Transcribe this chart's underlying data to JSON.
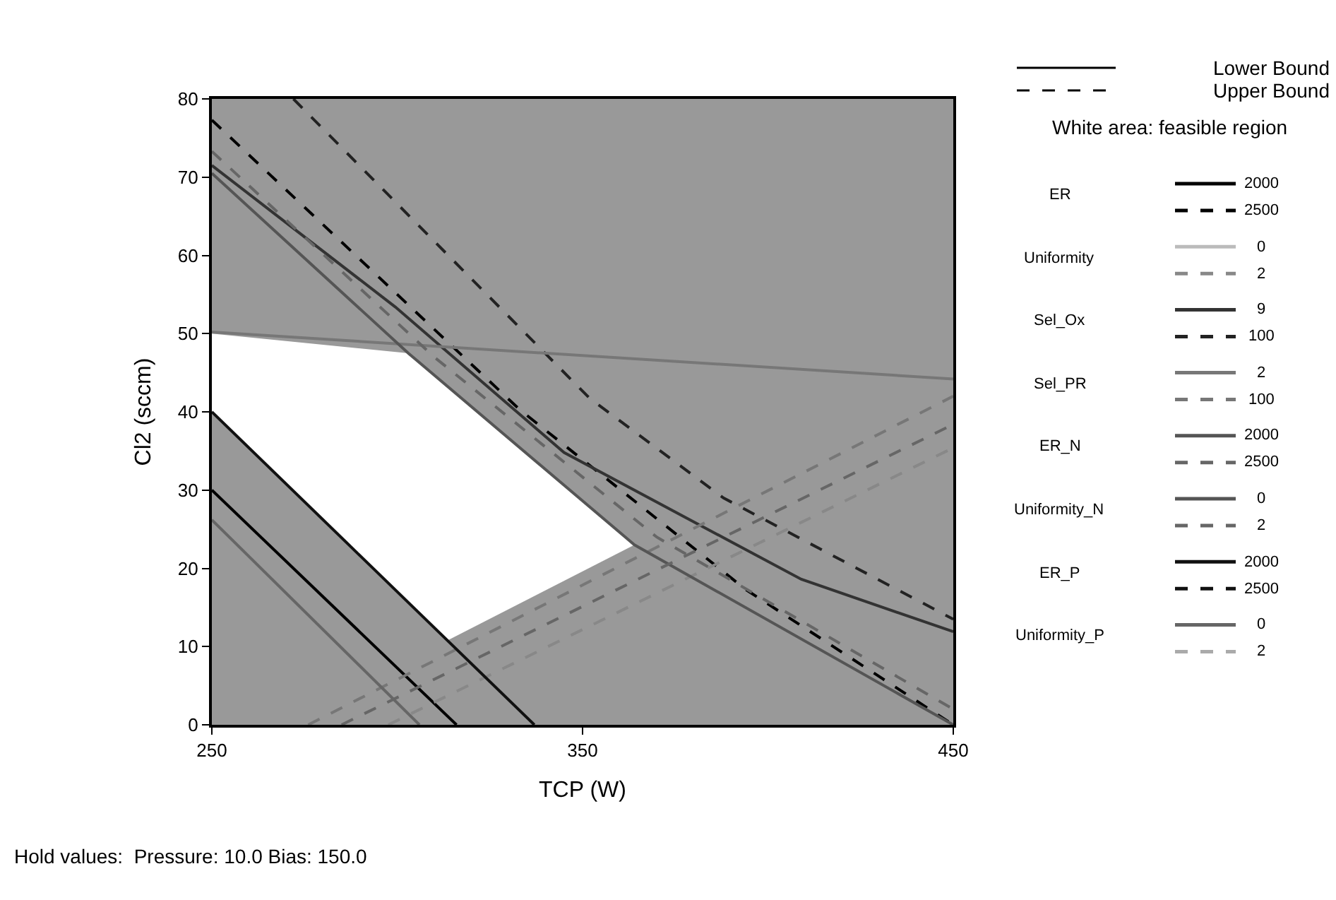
{
  "chart_data": {
    "type": "line",
    "xlabel": "TCP (W)",
    "ylabel": "Cl2 (sccm)",
    "xlim": [
      250,
      450
    ],
    "xticks": [
      250,
      350,
      450
    ],
    "ylim": [
      0,
      80
    ],
    "yticks": [
      0,
      10,
      20,
      30,
      40,
      50,
      60,
      70,
      80
    ],
    "grid": false,
    "legend": "right",
    "marker": "none",
    "annotations": [
      "Lower Bound",
      "Upper Bound",
      "White area: feasible region",
      "ER",
      "Uniformity",
      "Sel_Ox",
      "Sel_PR",
      "ER_N",
      "Uniformity_N",
      "ER_P",
      "Uniformity_P",
      "Hold values:  Pressure: 10.0 Bias: 150.0"
    ],
    "series": [
      {
        "type": "area",
        "color": "#ffffff",
        "x": [
          250,
          303,
          364,
          313.6,
          250
        ],
        "values": [
          50,
          47.5,
          23,
          10.8,
          40
        ]
      },
      {
        "name": "2000",
        "color": "#000000",
        "line_style": "solid",
        "x": [
          250,
          316
        ],
        "values": [
          30,
          0
        ]
      },
      {
        "name": "2500",
        "color": "#000000",
        "line_style": "dashed",
        "x": [
          250,
          333,
          394,
          450
        ],
        "values": [
          77.3,
          40.3,
          17.3,
          0
        ]
      },
      {
        "name": "0",
        "color": "#bbbbbb",
        "line_style": "solid"
      },
      {
        "name": "2",
        "color": "#888888",
        "line_style": "dashed",
        "x": [
          297.6,
          450
        ],
        "values": [
          0,
          35.4
        ]
      },
      {
        "name": "9",
        "color": "#333333",
        "line_style": "solid",
        "x": [
          250,
          299.5,
          345,
          409,
          450
        ],
        "values": [
          71.5,
          53.4,
          34.8,
          18.6,
          11.9
        ]
      },
      {
        "name": "100",
        "color": "#222222",
        "line_style": "dashed",
        "x": [
          272,
          343,
          352,
          388,
          450
        ],
        "values": [
          80,
          46,
          41.7,
          29,
          13.5
        ]
      },
      {
        "name": "2",
        "color": "#777777",
        "line_style": "solid",
        "x": [
          250,
          450
        ],
        "values": [
          50.2,
          44.2
        ]
      },
      {
        "name": "100",
        "color": "#777777",
        "line_style": "dashed",
        "x": [
          276,
          450
        ],
        "values": [
          0,
          42
        ]
      },
      {
        "name": "2000",
        "color": "#555555",
        "line_style": "solid",
        "x": [
          250,
          303,
          364,
          450
        ],
        "values": [
          70.5,
          47.5,
          23,
          0
        ]
      },
      {
        "name": "2500",
        "color": "#666666",
        "line_style": "dashed",
        "x": [
          250,
          310,
          370,
          450
        ],
        "values": [
          73.3,
          47,
          24,
          2
        ]
      },
      {
        "name": "0",
        "color": "#555555",
        "line_style": "solid"
      },
      {
        "name": "2",
        "color": "#666666",
        "line_style": "dashed",
        "x": [
          285,
          450
        ],
        "values": [
          0,
          38.4
        ]
      },
      {
        "name": "2000",
        "color": "#111111",
        "line_style": "solid",
        "x": [
          250,
          337
        ],
        "values": [
          40,
          0
        ]
      },
      {
        "name": "2500",
        "color": "#111111",
        "line_style": "dashed"
      },
      {
        "name": "0",
        "color": "#666666",
        "line_style": "solid",
        "x": [
          250,
          306
        ],
        "values": [
          26.2,
          0
        ]
      },
      {
        "name": "2",
        "color": "#aaaaaa",
        "line_style": "dashed"
      }
    ]
  }
}
